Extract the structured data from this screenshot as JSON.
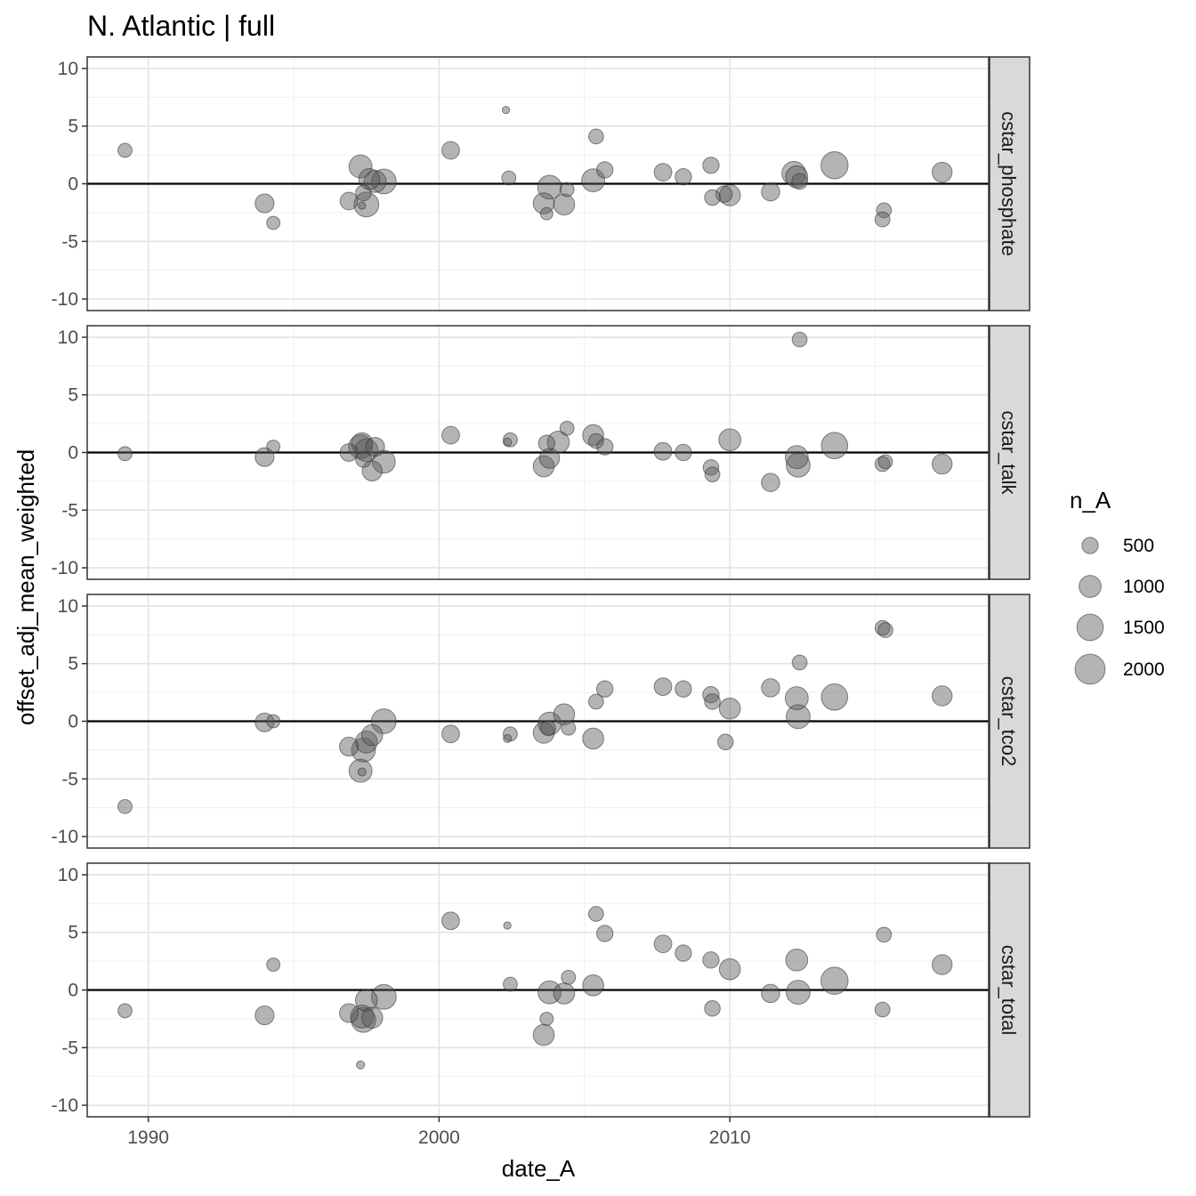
{
  "chart_data": {
    "type": "scatter",
    "title": "N. Atlantic | full",
    "xlabel": "date_A",
    "ylabel": "offset_adj_mean_weighted",
    "xlim": [
      1987.9,
      2018.9
    ],
    "ylim": [
      -11,
      11
    ],
    "x_ticks": [
      1990,
      2000,
      2010
    ],
    "x_tick_labels": [
      "1990",
      "2000",
      "2010"
    ],
    "y_ticks": [
      -10,
      -5,
      0,
      5,
      10
    ],
    "y_tick_labels": [
      "-10",
      "-5",
      "0",
      "5",
      "10"
    ],
    "grid": true,
    "reference_line_y": 0,
    "point_color": "#595959",
    "point_opacity": 0.45,
    "legend": {
      "title": "n_A",
      "position": "right",
      "entries": [
        {
          "label": "500",
          "value": 500
        },
        {
          "label": "1000",
          "value": 1000
        },
        {
          "label": "1500",
          "value": 1500
        },
        {
          "label": "2000",
          "value": 2000
        }
      ]
    },
    "size_scale": {
      "min_n": 20,
      "max_n": 2300
    },
    "panels": [
      {
        "name": "cstar_phosphate",
        "points": [
          {
            "x": 1989.2,
            "y": 2.9,
            "n": 350
          },
          {
            "x": 1994.0,
            "y": -1.7,
            "n": 700
          },
          {
            "x": 1994.3,
            "y": -3.4,
            "n": 300
          },
          {
            "x": 1996.9,
            "y": -1.5,
            "n": 600
          },
          {
            "x": 1997.3,
            "y": 1.5,
            "n": 1100
          },
          {
            "x": 1997.35,
            "y": -1.9,
            "n": 60
          },
          {
            "x": 1997.4,
            "y": -0.8,
            "n": 450
          },
          {
            "x": 1997.5,
            "y": -1.8,
            "n": 1300
          },
          {
            "x": 1997.6,
            "y": 0.4,
            "n": 900
          },
          {
            "x": 1997.8,
            "y": 0.2,
            "n": 1000
          },
          {
            "x": 1998.1,
            "y": 0.2,
            "n": 1300
          },
          {
            "x": 2000.4,
            "y": 2.9,
            "n": 600
          },
          {
            "x": 2002.3,
            "y": 6.4,
            "n": 60
          },
          {
            "x": 2002.4,
            "y": 0.5,
            "n": 350
          },
          {
            "x": 2003.6,
            "y": -1.7,
            "n": 900
          },
          {
            "x": 2003.7,
            "y": -2.6,
            "n": 250
          },
          {
            "x": 2003.8,
            "y": -0.3,
            "n": 1200
          },
          {
            "x": 2004.3,
            "y": -1.8,
            "n": 900
          },
          {
            "x": 2004.4,
            "y": -0.5,
            "n": 350
          },
          {
            "x": 2005.3,
            "y": 0.3,
            "n": 1100
          },
          {
            "x": 2005.4,
            "y": 4.1,
            "n": 400
          },
          {
            "x": 2005.7,
            "y": 1.2,
            "n": 500
          },
          {
            "x": 2007.7,
            "y": 1.0,
            "n": 600
          },
          {
            "x": 2008.4,
            "y": 0.6,
            "n": 500
          },
          {
            "x": 2009.35,
            "y": 1.6,
            "n": 500
          },
          {
            "x": 2009.4,
            "y": -1.2,
            "n": 450
          },
          {
            "x": 2009.8,
            "y": -0.9,
            "n": 500
          },
          {
            "x": 2010.0,
            "y": -1.0,
            "n": 900
          },
          {
            "x": 2011.4,
            "y": -0.7,
            "n": 650
          },
          {
            "x": 2012.2,
            "y": 0.9,
            "n": 1200
          },
          {
            "x": 2012.3,
            "y": 0.6,
            "n": 1000
          },
          {
            "x": 2012.4,
            "y": 0.2,
            "n": 450
          },
          {
            "x": 2013.6,
            "y": 1.6,
            "n": 1600
          },
          {
            "x": 2015.3,
            "y": -2.3,
            "n": 400
          },
          {
            "x": 2015.25,
            "y": -3.1,
            "n": 400
          },
          {
            "x": 2017.3,
            "y": 1.0,
            "n": 800
          }
        ]
      },
      {
        "name": "cstar_talk",
        "points": [
          {
            "x": 1989.2,
            "y": -0.1,
            "n": 350
          },
          {
            "x": 1994.0,
            "y": -0.4,
            "n": 700
          },
          {
            "x": 1994.3,
            "y": 0.5,
            "n": 300
          },
          {
            "x": 1996.9,
            "y": 0.0,
            "n": 600
          },
          {
            "x": 1997.3,
            "y": 0.5,
            "n": 1200
          },
          {
            "x": 1997.35,
            "y": 0.8,
            "n": 900
          },
          {
            "x": 1997.4,
            "y": -0.6,
            "n": 450
          },
          {
            "x": 1997.5,
            "y": 0.2,
            "n": 1100
          },
          {
            "x": 1997.7,
            "y": -1.6,
            "n": 800
          },
          {
            "x": 1997.8,
            "y": 0.5,
            "n": 700
          },
          {
            "x": 1998.1,
            "y": -0.8,
            "n": 1100
          },
          {
            "x": 2000.4,
            "y": 1.5,
            "n": 600
          },
          {
            "x": 2002.35,
            "y": 0.9,
            "n": 80
          },
          {
            "x": 2002.45,
            "y": 1.1,
            "n": 350
          },
          {
            "x": 2003.6,
            "y": -1.2,
            "n": 900
          },
          {
            "x": 2003.7,
            "y": 0.8,
            "n": 500
          },
          {
            "x": 2003.8,
            "y": -0.5,
            "n": 800
          },
          {
            "x": 2004.1,
            "y": 0.9,
            "n": 1000
          },
          {
            "x": 2004.4,
            "y": 2.1,
            "n": 350
          },
          {
            "x": 2005.3,
            "y": 1.5,
            "n": 900
          },
          {
            "x": 2005.4,
            "y": 1.0,
            "n": 400
          },
          {
            "x": 2005.7,
            "y": 0.5,
            "n": 500
          },
          {
            "x": 2007.7,
            "y": 0.1,
            "n": 600
          },
          {
            "x": 2008.4,
            "y": 0.0,
            "n": 500
          },
          {
            "x": 2009.35,
            "y": -1.3,
            "n": 450
          },
          {
            "x": 2009.4,
            "y": -1.9,
            "n": 400
          },
          {
            "x": 2010.0,
            "y": 1.1,
            "n": 1000
          },
          {
            "x": 2011.4,
            "y": -2.6,
            "n": 650
          },
          {
            "x": 2012.3,
            "y": -0.4,
            "n": 1100
          },
          {
            "x": 2012.35,
            "y": -1.1,
            "n": 1200
          },
          {
            "x": 2012.4,
            "y": 9.8,
            "n": 400
          },
          {
            "x": 2013.6,
            "y": 0.6,
            "n": 1500
          },
          {
            "x": 2015.25,
            "y": -1.0,
            "n": 400
          },
          {
            "x": 2015.35,
            "y": -0.8,
            "n": 350
          },
          {
            "x": 2017.3,
            "y": -1.0,
            "n": 800
          }
        ]
      },
      {
        "name": "cstar_tco2",
        "points": [
          {
            "x": 1989.2,
            "y": -7.4,
            "n": 350
          },
          {
            "x": 1994.0,
            "y": -0.1,
            "n": 700
          },
          {
            "x": 1994.3,
            "y": 0.0,
            "n": 300
          },
          {
            "x": 1996.9,
            "y": -2.2,
            "n": 700
          },
          {
            "x": 1997.3,
            "y": -4.3,
            "n": 1100
          },
          {
            "x": 1997.35,
            "y": -4.4,
            "n": 80
          },
          {
            "x": 1997.4,
            "y": -2.5,
            "n": 1200
          },
          {
            "x": 1997.5,
            "y": -1.8,
            "n": 1000
          },
          {
            "x": 1997.7,
            "y": -1.2,
            "n": 900
          },
          {
            "x": 1998.1,
            "y": 0.0,
            "n": 1300
          },
          {
            "x": 2000.4,
            "y": -1.1,
            "n": 600
          },
          {
            "x": 2002.35,
            "y": -1.5,
            "n": 80
          },
          {
            "x": 2002.45,
            "y": -1.1,
            "n": 350
          },
          {
            "x": 2003.6,
            "y": -1.0,
            "n": 900
          },
          {
            "x": 2003.75,
            "y": -0.6,
            "n": 400
          },
          {
            "x": 2003.8,
            "y": -0.2,
            "n": 1100
          },
          {
            "x": 2004.3,
            "y": 0.6,
            "n": 900
          },
          {
            "x": 2004.45,
            "y": -0.6,
            "n": 350
          },
          {
            "x": 2005.3,
            "y": -1.5,
            "n": 900
          },
          {
            "x": 2005.4,
            "y": 1.7,
            "n": 400
          },
          {
            "x": 2005.7,
            "y": 2.8,
            "n": 500
          },
          {
            "x": 2007.7,
            "y": 3.0,
            "n": 600
          },
          {
            "x": 2008.4,
            "y": 2.8,
            "n": 500
          },
          {
            "x": 2009.35,
            "y": 2.3,
            "n": 500
          },
          {
            "x": 2009.4,
            "y": 1.7,
            "n": 450
          },
          {
            "x": 2009.85,
            "y": -1.8,
            "n": 450
          },
          {
            "x": 2010.0,
            "y": 1.1,
            "n": 900
          },
          {
            "x": 2011.4,
            "y": 2.9,
            "n": 650
          },
          {
            "x": 2012.3,
            "y": 2.0,
            "n": 1100
          },
          {
            "x": 2012.35,
            "y": 0.4,
            "n": 1200
          },
          {
            "x": 2012.4,
            "y": 5.1,
            "n": 400
          },
          {
            "x": 2013.6,
            "y": 2.1,
            "n": 1500
          },
          {
            "x": 2015.25,
            "y": 8.1,
            "n": 400
          },
          {
            "x": 2015.35,
            "y": 7.9,
            "n": 400
          },
          {
            "x": 2017.3,
            "y": 2.2,
            "n": 800
          }
        ]
      },
      {
        "name": "cstar_total",
        "points": [
          {
            "x": 1989.2,
            "y": -1.8,
            "n": 350
          },
          {
            "x": 1994.0,
            "y": -2.2,
            "n": 700
          },
          {
            "x": 1994.3,
            "y": 2.2,
            "n": 300
          },
          {
            "x": 1996.9,
            "y": -2.0,
            "n": 700
          },
          {
            "x": 1997.3,
            "y": -6.5,
            "n": 80
          },
          {
            "x": 1997.35,
            "y": -2.3,
            "n": 1100
          },
          {
            "x": 1997.4,
            "y": -2.6,
            "n": 1300
          },
          {
            "x": 1997.5,
            "y": -0.9,
            "n": 1000
          },
          {
            "x": 1997.7,
            "y": -2.4,
            "n": 900
          },
          {
            "x": 1998.1,
            "y": -0.6,
            "n": 1300
          },
          {
            "x": 2000.4,
            "y": 6.0,
            "n": 600
          },
          {
            "x": 2002.35,
            "y": 5.6,
            "n": 60
          },
          {
            "x": 2002.45,
            "y": 0.5,
            "n": 350
          },
          {
            "x": 2003.6,
            "y": -3.9,
            "n": 900
          },
          {
            "x": 2003.7,
            "y": -2.5,
            "n": 300
          },
          {
            "x": 2003.8,
            "y": -0.2,
            "n": 1100
          },
          {
            "x": 2004.3,
            "y": -0.3,
            "n": 900
          },
          {
            "x": 2004.45,
            "y": 1.1,
            "n": 350
          },
          {
            "x": 2005.3,
            "y": 0.4,
            "n": 900
          },
          {
            "x": 2005.4,
            "y": 6.6,
            "n": 400
          },
          {
            "x": 2005.7,
            "y": 4.9,
            "n": 500
          },
          {
            "x": 2007.7,
            "y": 4.0,
            "n": 600
          },
          {
            "x": 2008.4,
            "y": 3.2,
            "n": 500
          },
          {
            "x": 2009.35,
            "y": 2.6,
            "n": 500
          },
          {
            "x": 2009.4,
            "y": -1.6,
            "n": 450
          },
          {
            "x": 2010.0,
            "y": 1.8,
            "n": 900
          },
          {
            "x": 2011.4,
            "y": -0.3,
            "n": 650
          },
          {
            "x": 2012.3,
            "y": 2.6,
            "n": 1000
          },
          {
            "x": 2012.35,
            "y": -0.2,
            "n": 1200
          },
          {
            "x": 2013.6,
            "y": 0.8,
            "n": 1600
          },
          {
            "x": 2015.3,
            "y": 4.8,
            "n": 400
          },
          {
            "x": 2015.25,
            "y": -1.7,
            "n": 400
          },
          {
            "x": 2017.3,
            "y": 2.2,
            "n": 800
          }
        ]
      }
    ]
  }
}
